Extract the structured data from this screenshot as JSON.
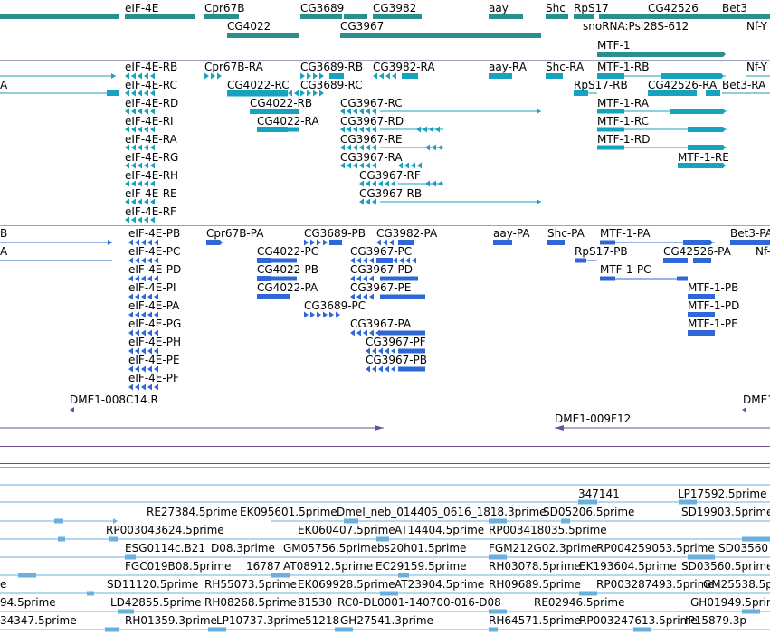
{
  "colors": {
    "gene": "#2a8f8f",
    "mrna": "#17a2bf",
    "protein": "#2f68d6",
    "clone": "#6a4ca8",
    "est": "#6ab0dc",
    "separator": "#9aa4b8",
    "separator_dark": "#6b4f8a",
    "label": "#000000"
  },
  "tracks": {
    "genes": {
      "labels": [
        "eIF-4E",
        "Cpr67B",
        "CG3689",
        "CG3982",
        "aay",
        "Shc",
        "RpS17",
        "CG42526",
        "Bet3",
        "CG4022",
        "CG3967",
        "snoRNA:Psi28S-612",
        "Nf-Y",
        "MTF-1"
      ]
    },
    "transcripts": {
      "labels": [
        "eIF-4E-RB",
        "Cpr67B-RA",
        "CG3689-RB",
        "CG3982-RA",
        "aay-RA",
        "Shc-RA",
        "MTF-1-RB",
        "Nf-Y",
        "A",
        "eIF-4E-RC",
        "CG4022-RC",
        "CG3689-RC",
        "RpS17-RB",
        "CG42526-RA",
        "Bet3-RA",
        "eIF-4E-RD",
        "CG4022-RB",
        "CG3967-RC",
        "MTF-1-RA",
        "eIF-4E-RI",
        "CG4022-RA",
        "CG3967-RD",
        "MTF-1-RC",
        "eIF-4E-RA",
        "CG3967-RE",
        "MTF-1-RD",
        "eIF-4E-RG",
        "CG3967-RA",
        "MTF-1-RE",
        "eIF-4E-RH",
        "CG3967-RF",
        "eIF-4E-RE",
        "CG3967-RB",
        "eIF-4E-RF"
      ]
    },
    "proteins": {
      "labels": [
        "B",
        "eIF-4E-PB",
        "Cpr67B-PA",
        "CG3689-PB",
        "CG3982-PA",
        "aay-PA",
        "Shc-PA",
        "MTF-1-PA",
        "Bet3-PA",
        "A",
        "eIF-4E-PC",
        "CG4022-PC",
        "CG3967-PC",
        "RpS17-PB",
        "CG42526-PA",
        "Nf-",
        "eIF-4E-PD",
        "CG4022-PB",
        "CG3967-PD",
        "MTF-1-PC",
        "eIF-4E-PI",
        "CG4022-PA",
        "CG3967-PE",
        "MTF-1-PB",
        "eIF-4E-PA",
        "CG3689-PC",
        "MTF-1-PD",
        "eIF-4E-PG",
        "CG3967-PA",
        "MTF-1-PE",
        "eIF-4E-PH",
        "CG3967-PF",
        "eIF-4E-PE",
        "CG3967-PB",
        "eIF-4E-PF"
      ]
    },
    "clones": {
      "labels": [
        "DME1-008C14.R",
        "DME1",
        "DME1-009F12"
      ]
    },
    "ests": {
      "labels": [
        "347141",
        "LP17592.5prime",
        "RE27384.5prime",
        "EK095601.5prime",
        "Dmel_neb_014405_0616_1818.3prime",
        "SD05206.5prime",
        "SD19903.5prime",
        "RP003043624.5prime",
        "EK060407.5prime",
        "AT14404.5prime",
        "RP003418035.5prime",
        "ESG0114c.B21_D08.3prime",
        "GM05756.5prime",
        "bs20h01.5prime",
        "FGM212G02.3prime",
        "RP004259053.5prime",
        "SD03560",
        "FGC019B08.5prime",
        "16787",
        "AT08912.5prime",
        "EC29159.5prime",
        "RH03078.5prime",
        "EK193604.5prime",
        "SD03560.5prime",
        "SD11120.5prime",
        "RH55073.5prime",
        "EK069928.5prime",
        "AT23904.5prime",
        "RH09689.5prime",
        "RP003287493.5prime",
        "GM25538.5p",
        "e",
        "94.5prime",
        "LD42855.5prime",
        "RH08268.5prime",
        "81530",
        "RC0-DL0001-140700-016-D08",
        "RE02946.5prime",
        "GH01949.5prim",
        "34347.5prime",
        "RH01359.3prime",
        "LP10737.3prime",
        "51218",
        "GH27541.3prime",
        "RH64571.5prime",
        "RP003247613.5prime",
        "IP15879.3p"
      ]
    }
  }
}
